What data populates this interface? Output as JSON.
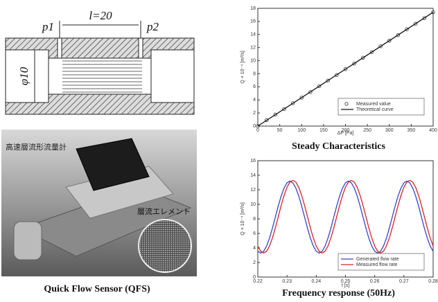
{
  "diagram": {
    "labels": [
      "p1",
      "l=20",
      "p2",
      "φ10"
    ]
  },
  "photo": {
    "labels": [
      "高速層流形流量計",
      "層流エレメント"
    ],
    "caption": "Quick Flow Sensor (QFS)"
  },
  "chart_data": [
    {
      "type": "line",
      "title": "Steady Characteristics",
      "x_label": "ΔP [Pa]",
      "y_label": "Q × 10⁻⁴ [m³/s]",
      "xlim": [
        0,
        400
      ],
      "xticks": [
        0,
        50,
        100,
        150,
        200,
        250,
        300,
        350,
        400
      ],
      "ylim": [
        0,
        18
      ],
      "yticks": [
        0,
        2,
        4,
        6,
        8,
        10,
        12,
        14,
        16,
        18
      ],
      "legend": "lower right",
      "series": [
        {
          "name": "Measured value",
          "color": "#333333",
          "mode": "markers",
          "x": [
            0,
            20,
            40,
            60,
            80,
            100,
            120,
            140,
            160,
            180,
            200,
            220,
            240,
            260,
            280,
            300,
            320,
            340,
            360,
            380,
            400
          ],
          "values": [
            0,
            0.9,
            1.75,
            2.6,
            3.5,
            4.35,
            5.2,
            6.1,
            6.95,
            7.8,
            8.7,
            9.55,
            10.45,
            11.3,
            12.2,
            13.05,
            13.9,
            14.8,
            15.65,
            16.5,
            17.4
          ]
        },
        {
          "name": "Theoretical curve",
          "color": "#111111",
          "mode": "lines",
          "x": [
            0,
            400
          ],
          "values": [
            0,
            17.4
          ]
        }
      ]
    },
    {
      "type": "line",
      "title": "Frequency response (50Hz)",
      "x_label": "t [s]",
      "y_label": "Q × 10⁻⁴ [m³/s]",
      "xlim": [
        0.22,
        0.28
      ],
      "xticks": [
        0.22,
        0.23,
        0.24,
        0.25,
        0.26,
        0.27,
        0.28
      ],
      "ylim": [
        0,
        16
      ],
      "yticks": [
        0,
        2,
        4,
        6,
        8,
        10,
        12,
        14,
        16
      ],
      "legend": "lower right",
      "series": [
        {
          "name": "Generated flow rate",
          "color": "#3344cc",
          "mode": "lines",
          "x": [
            0.22,
            0.221,
            0.222,
            0.223,
            0.224,
            0.225,
            0.226,
            0.227,
            0.228,
            0.229,
            0.23,
            0.231,
            0.232,
            0.233,
            0.234,
            0.235,
            0.236,
            0.237,
            0.238,
            0.239,
            0.24,
            0.241,
            0.242,
            0.243,
            0.244,
            0.245,
            0.246,
            0.247,
            0.248,
            0.249,
            0.25,
            0.251,
            0.252,
            0.253,
            0.254,
            0.255,
            0.256,
            0.257,
            0.258,
            0.259,
            0.26,
            0.261,
            0.262,
            0.263,
            0.264,
            0.265,
            0.266,
            0.267,
            0.268,
            0.269,
            0.27,
            0.271,
            0.272,
            0.273,
            0.274,
            0.275,
            0.276,
            0.277,
            0.278,
            0.279,
            0.28
          ],
          "values": [
            3.54,
            3.3,
            3.54,
            4.25,
            5.34,
            6.72,
            8.25,
            9.78,
            11.16,
            12.25,
            12.96,
            13.2,
            12.96,
            12.25,
            11.16,
            9.78,
            8.25,
            6.72,
            5.34,
            4.25,
            3.54,
            3.3,
            3.54,
            4.25,
            5.34,
            6.72,
            8.25,
            9.78,
            11.16,
            12.25,
            12.96,
            13.2,
            12.96,
            12.25,
            11.16,
            9.78,
            8.25,
            6.72,
            5.34,
            4.25,
            3.54,
            3.3,
            3.54,
            4.25,
            5.34,
            6.72,
            8.25,
            9.78,
            11.16,
            12.25,
            12.96,
            13.2,
            12.96,
            12.25,
            11.16,
            9.78,
            8.25,
            6.72,
            5.34,
            4.25,
            3.54
          ]
        },
        {
          "name": "Measured flow rate",
          "color": "#dd2222",
          "mode": "lines",
          "x": [
            0.22,
            0.221,
            0.222,
            0.223,
            0.224,
            0.225,
            0.226,
            0.227,
            0.228,
            0.229,
            0.23,
            0.231,
            0.232,
            0.233,
            0.234,
            0.235,
            0.236,
            0.237,
            0.238,
            0.239,
            0.24,
            0.241,
            0.242,
            0.243,
            0.244,
            0.245,
            0.246,
            0.247,
            0.248,
            0.249,
            0.25,
            0.251,
            0.252,
            0.253,
            0.254,
            0.255,
            0.256,
            0.257,
            0.258,
            0.259,
            0.26,
            0.261,
            0.262,
            0.263,
            0.264,
            0.265,
            0.266,
            0.267,
            0.268,
            0.269,
            0.27,
            0.271,
            0.272,
            0.273,
            0.274,
            0.275,
            0.276,
            0.277,
            0.278,
            0.279,
            0.28
          ],
          "values": [
            4.26,
            3.55,
            3.3,
            3.55,
            4.26,
            5.36,
            6.76,
            8.3,
            9.85,
            11.24,
            12.35,
            13.06,
            13.3,
            13.06,
            12.35,
            11.24,
            9.85,
            8.3,
            6.76,
            5.36,
            4.26,
            3.55,
            3.3,
            3.55,
            4.26,
            5.36,
            6.76,
            8.3,
            9.85,
            11.24,
            12.35,
            13.06,
            13.3,
            13.06,
            12.35,
            11.24,
            9.85,
            8.3,
            6.76,
            5.36,
            4.26,
            3.55,
            3.3,
            3.55,
            4.26,
            5.36,
            6.76,
            8.3,
            9.85,
            11.24,
            12.35,
            13.06,
            13.3,
            13.06,
            12.35,
            11.24,
            9.85,
            8.3,
            6.76,
            5.36,
            4.26
          ]
        }
      ]
    }
  ]
}
